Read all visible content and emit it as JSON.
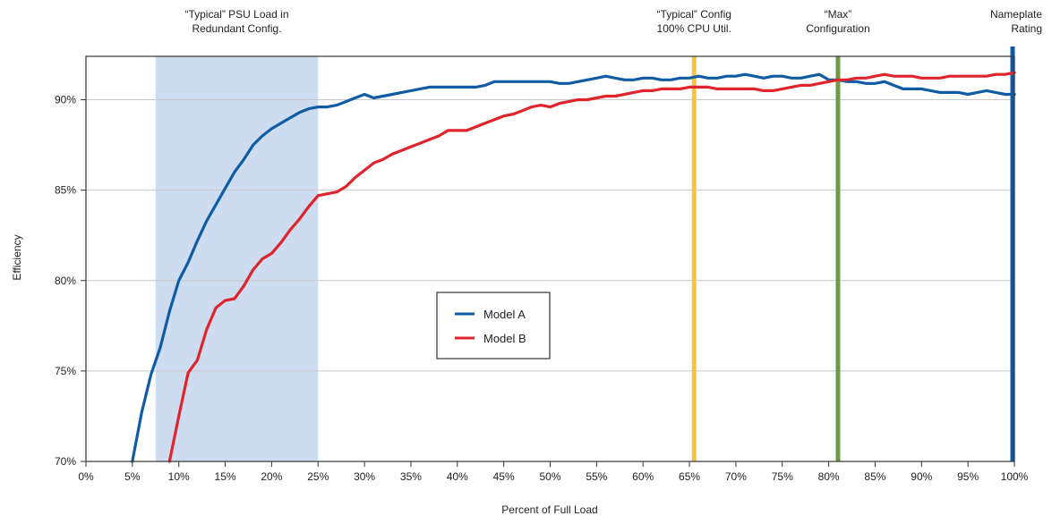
{
  "chart_data": {
    "type": "line",
    "xlabel": "Percent of Full Load",
    "ylabel": "Efficiency",
    "xlim": [
      0,
      100
    ],
    "ylim": [
      70,
      92.4
    ],
    "x_ticks": [
      0,
      5,
      10,
      15,
      20,
      25,
      30,
      35,
      40,
      45,
      50,
      55,
      60,
      65,
      70,
      75,
      80,
      85,
      90,
      95,
      100
    ],
    "x_tick_labels": [
      "0%",
      "5%",
      "10%",
      "15%",
      "20%",
      "25%",
      "30%",
      "35%",
      "40%",
      "45%",
      "50%",
      "55%",
      "60%",
      "65%",
      "70%",
      "75%",
      "80%",
      "85%",
      "90%",
      "95%",
      "100%"
    ],
    "y_ticks": [
      70,
      75,
      80,
      85,
      90
    ],
    "y_tick_labels": [
      "70%",
      "75%",
      "80%",
      "85%",
      "90%"
    ],
    "grid": "horizontal",
    "legend_position": "center",
    "shaded_region": {
      "x_start": 7.5,
      "x_end": 25,
      "color": "#cddcf0",
      "label_lines": [
        "“Typical” PSU Load in",
        "Redundant Config."
      ]
    },
    "vertical_markers": [
      {
        "x": 65.5,
        "color": "#f6c245",
        "label_lines": [
          "“Typical”  Config",
          "100% CPU Util."
        ]
      },
      {
        "x": 81,
        "color": "#6e9a44",
        "label_lines": [
          "“Max”",
          "Configuration"
        ]
      },
      {
        "x": 100,
        "color": "#0b5aa6",
        "label_lines": [
          "Nameplate",
          "Rating"
        ]
      }
    ],
    "series": [
      {
        "name": "Model A",
        "color": "#0f5ca5",
        "x": [
          5,
          6,
          7,
          8,
          9,
          10,
          11,
          12,
          13,
          14,
          15,
          16,
          17,
          18,
          19,
          20,
          21,
          22,
          23,
          24,
          25,
          26,
          27,
          28,
          29,
          30,
          31,
          32,
          33,
          34,
          35,
          36,
          37,
          38,
          39,
          40,
          41,
          42,
          43,
          44,
          45,
          46,
          47,
          48,
          49,
          50,
          51,
          52,
          53,
          54,
          55,
          56,
          57,
          58,
          59,
          60,
          61,
          62,
          63,
          64,
          65,
          66,
          67,
          68,
          69,
          70,
          71,
          72,
          73,
          74,
          75,
          76,
          77,
          78,
          79,
          80,
          81,
          82,
          83,
          84,
          85,
          86,
          87,
          88,
          89,
          90,
          91,
          92,
          93,
          94,
          95,
          96,
          97,
          98,
          99,
          100
        ],
        "y": [
          70.0,
          72.7,
          74.8,
          76.3,
          78.3,
          80.0,
          81.0,
          82.2,
          83.3,
          84.2,
          85.1,
          86.0,
          86.7,
          87.5,
          88.0,
          88.4,
          88.7,
          89.0,
          89.3,
          89.5,
          89.6,
          89.6,
          89.7,
          89.9,
          90.1,
          90.3,
          90.1,
          90.2,
          90.3,
          90.4,
          90.5,
          90.6,
          90.7,
          90.7,
          90.7,
          90.7,
          90.7,
          90.7,
          90.8,
          91.0,
          91.0,
          91.0,
          91.0,
          91.0,
          91.0,
          91.0,
          90.9,
          90.9,
          91.0,
          91.1,
          91.2,
          91.3,
          91.2,
          91.1,
          91.1,
          91.2,
          91.2,
          91.1,
          91.1,
          91.2,
          91.2,
          91.3,
          91.2,
          91.2,
          91.3,
          91.3,
          91.4,
          91.3,
          91.2,
          91.3,
          91.3,
          91.2,
          91.2,
          91.3,
          91.4,
          91.1,
          91.1,
          91.0,
          91.0,
          90.9,
          90.9,
          91.0,
          90.8,
          90.6,
          90.6,
          90.6,
          90.5,
          90.4,
          90.4,
          90.4,
          90.3,
          90.4,
          90.5,
          90.4,
          90.3,
          90.3
        ]
      },
      {
        "name": "Model B",
        "color": "#e0242b",
        "x": [
          9,
          10,
          11,
          12,
          13,
          14,
          15,
          16,
          17,
          18,
          19,
          20,
          21,
          22,
          23,
          24,
          25,
          26,
          27,
          28,
          29,
          30,
          31,
          32,
          33,
          34,
          35,
          36,
          37,
          38,
          39,
          40,
          41,
          42,
          43,
          44,
          45,
          46,
          47,
          48,
          49,
          50,
          51,
          52,
          53,
          54,
          55,
          56,
          57,
          58,
          59,
          60,
          61,
          62,
          63,
          64,
          65,
          66,
          67,
          68,
          69,
          70,
          71,
          72,
          73,
          74,
          75,
          76,
          77,
          78,
          79,
          80,
          81,
          82,
          83,
          84,
          85,
          86,
          87,
          88,
          89,
          90,
          91,
          92,
          93,
          94,
          95,
          96,
          97,
          98,
          99,
          100
        ],
        "y": [
          70.0,
          72.5,
          74.9,
          75.6,
          77.3,
          78.5,
          78.9,
          79.0,
          79.7,
          80.6,
          81.2,
          81.5,
          82.1,
          82.8,
          83.4,
          84.1,
          84.7,
          84.8,
          84.9,
          85.2,
          85.7,
          86.1,
          86.5,
          86.7,
          87.0,
          87.2,
          87.4,
          87.6,
          87.8,
          88.0,
          88.3,
          88.3,
          88.3,
          88.5,
          88.7,
          88.9,
          89.1,
          89.2,
          89.4,
          89.6,
          89.7,
          89.6,
          89.8,
          89.9,
          90.0,
          90.0,
          90.1,
          90.2,
          90.2,
          90.3,
          90.4,
          90.5,
          90.5,
          90.6,
          90.6,
          90.6,
          90.7,
          90.7,
          90.7,
          90.6,
          90.6,
          90.6,
          90.6,
          90.6,
          90.5,
          90.5,
          90.6,
          90.7,
          90.8,
          90.8,
          90.9,
          91.0,
          91.1,
          91.1,
          91.2,
          91.2,
          91.3,
          91.4,
          91.3,
          91.3,
          91.3,
          91.2,
          91.2,
          91.2,
          91.3,
          91.3,
          91.3,
          91.3,
          91.3,
          91.4,
          91.4,
          91.5
        ]
      }
    ]
  }
}
